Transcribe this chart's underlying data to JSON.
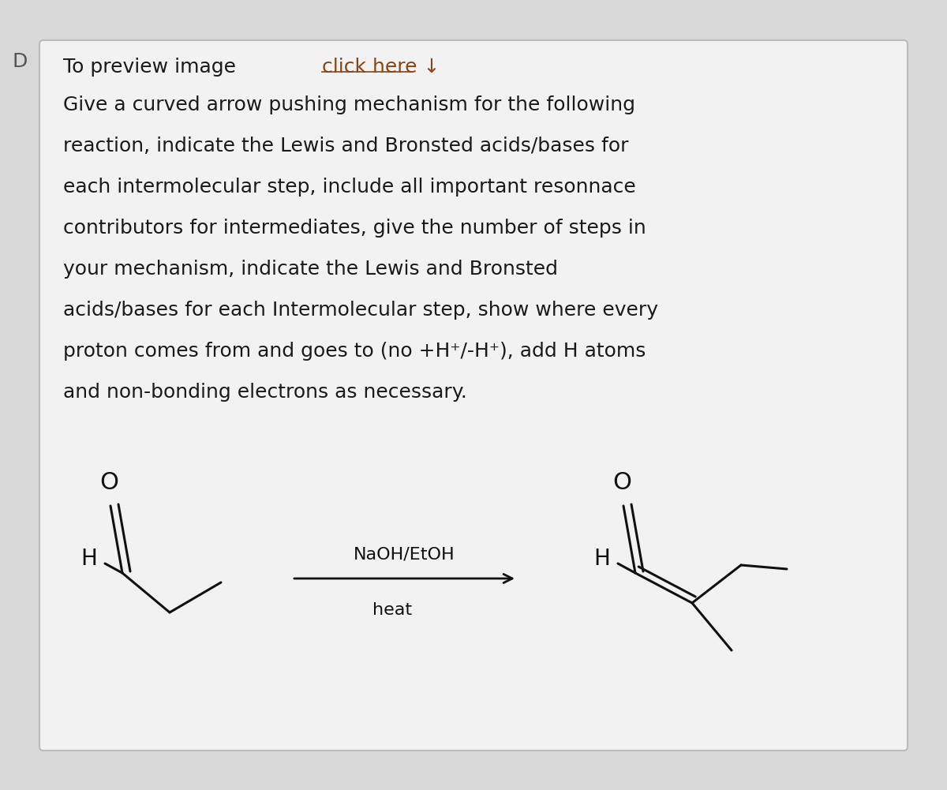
{
  "background_color": "#d8d8d8",
  "card_color": "#f0f0f0",
  "card_border_color": "#bbbbbb",
  "title_plain": "To preview image ",
  "title_link": "click here ↓",
  "title_link_color": "#8B4513",
  "body_text_lines": [
    "Give a curved arrow pushing mechanism for the following",
    "reaction, indicate the Lewis and Bronsted acids/bases for",
    "each intermolecular step, include all important resonnace",
    "contributors for intermediates, give the number of steps in",
    "your mechanism, indicate the Lewis and Bronsted",
    "acids/bases for each Intermolecular step, show where every",
    "proton comes from and goes to (no +H⁺/-H⁺), add H atoms",
    "and non-bonding electrons as necessary."
  ],
  "text_color": "#1a1a1a",
  "text_fontsize": 18,
  "letter_D_color": "#555555",
  "reagent_text": "NaOH/EtOH",
  "reagent_text2": "heat",
  "reagent_fontsize": 16
}
